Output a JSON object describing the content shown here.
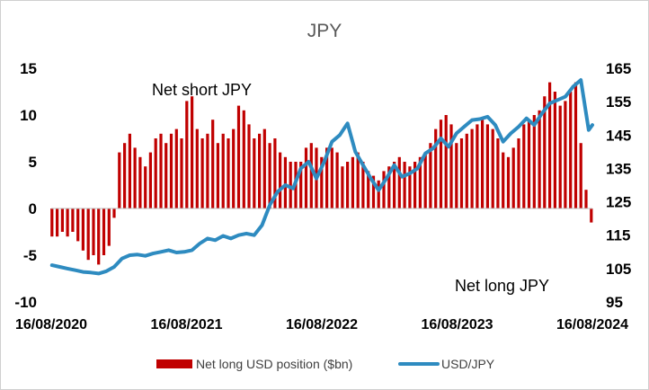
{
  "chart_data": {
    "type": "bar",
    "title": "JPY",
    "xlabel": "",
    "ylabel": "",
    "x_ticks": [
      "16/08/2020",
      "16/08/2021",
      "16/08/2022",
      "16/08/2023",
      "16/08/2024"
    ],
    "y_left": {
      "lim": [
        -10,
        15
      ],
      "ticks": [
        "15",
        "10",
        "5",
        "0",
        "-5",
        "-10"
      ]
    },
    "y_right": {
      "lim": [
        95,
        165
      ],
      "ticks": [
        "165",
        "155",
        "145",
        "135",
        "125",
        "115",
        "105",
        "95"
      ]
    },
    "grid": false,
    "legend_position": "bottom",
    "annotations": [
      "Net short JPY",
      "Net long JPY"
    ],
    "series": [
      {
        "name": "Net long USD position ($bn)",
        "type": "bar",
        "axis": "left",
        "color": "#c00000",
        "x": [
          "2020-08-18",
          "2020-09-01",
          "2020-09-15",
          "2020-09-29",
          "2020-10-13",
          "2020-10-27",
          "2020-11-10",
          "2020-11-24",
          "2020-12-08",
          "2020-12-22",
          "2021-01-05",
          "2021-01-19",
          "2021-02-02",
          "2021-02-16",
          "2021-03-02",
          "2021-03-16",
          "2021-03-30",
          "2021-04-13",
          "2021-04-27",
          "2021-05-11",
          "2021-05-25",
          "2021-06-08",
          "2021-06-22",
          "2021-07-06",
          "2021-07-20",
          "2021-08-03",
          "2021-08-17",
          "2021-08-31",
          "2021-09-14",
          "2021-09-28",
          "2021-10-12",
          "2021-10-26",
          "2021-11-09",
          "2021-11-23",
          "2021-12-07",
          "2021-12-21",
          "2022-01-04",
          "2022-01-18",
          "2022-02-01",
          "2022-02-15",
          "2022-03-01",
          "2022-03-15",
          "2022-03-29",
          "2022-04-12",
          "2022-04-26",
          "2022-05-10",
          "2022-05-24",
          "2022-06-07",
          "2022-06-21",
          "2022-07-05",
          "2022-07-19",
          "2022-08-02",
          "2022-08-16",
          "2022-08-30",
          "2022-09-13",
          "2022-09-27",
          "2022-10-11",
          "2022-10-25",
          "2022-11-08",
          "2022-11-22",
          "2022-12-06",
          "2022-12-20",
          "2023-01-03",
          "2023-01-17",
          "2023-01-31",
          "2023-02-14",
          "2023-02-28",
          "2023-03-14",
          "2023-03-28",
          "2023-04-11",
          "2023-04-25",
          "2023-05-09",
          "2023-05-23",
          "2023-06-06",
          "2023-06-20",
          "2023-07-04",
          "2023-07-18",
          "2023-08-01",
          "2023-08-15",
          "2023-08-29",
          "2023-09-12",
          "2023-09-26",
          "2023-10-10",
          "2023-10-24",
          "2023-11-07",
          "2023-11-21",
          "2023-12-05",
          "2023-12-19",
          "2024-01-02",
          "2024-01-16",
          "2024-01-30",
          "2024-02-13",
          "2024-02-27",
          "2024-03-12",
          "2024-03-26",
          "2024-04-09",
          "2024-04-23",
          "2024-05-07",
          "2024-05-21",
          "2024-06-04",
          "2024-06-18",
          "2024-07-02",
          "2024-07-16",
          "2024-07-30",
          "2024-08-13"
        ],
        "values": [
          -3.0,
          -3.0,
          -2.5,
          -3.0,
          -2.5,
          -3.5,
          -4.5,
          -5.5,
          -5.0,
          -6.0,
          -5.0,
          -4.0,
          -1.0,
          6.0,
          7.0,
          8.0,
          6.5,
          5.5,
          4.5,
          6.0,
          7.5,
          8.0,
          7.0,
          8.0,
          8.5,
          7.5,
          11.5,
          12.0,
          8.5,
          7.5,
          8.0,
          9.5,
          7.0,
          8.0,
          7.5,
          8.5,
          11.0,
          10.5,
          9.0,
          7.5,
          8.0,
          8.5,
          7.0,
          7.5,
          6.0,
          5.5,
          5.0,
          5.0,
          5.0,
          6.5,
          7.0,
          6.5,
          5.5,
          6.5,
          6.5,
          6.0,
          4.5,
          5.0,
          5.5,
          6.0,
          5.0,
          4.0,
          3.5,
          3.0,
          4.0,
          4.5,
          5.0,
          5.5,
          5.0,
          4.5,
          5.0,
          5.5,
          6.0,
          7.0,
          8.5,
          9.5,
          10.0,
          9.0,
          7.0,
          7.5,
          8.0,
          8.5,
          9.0,
          9.5,
          9.0,
          8.5,
          7.5,
          6.0,
          5.5,
          6.5,
          7.5,
          9.0,
          9.5,
          10.0,
          10.5,
          12.0,
          13.5,
          12.5,
          11.0,
          11.5,
          12.5,
          13.5,
          7.0,
          2.0,
          -1.5
        ]
      },
      {
        "name": "USD/JPY",
        "type": "line",
        "axis": "right",
        "color": "#2e8bc0",
        "x": [
          "2020-08-18",
          "2020-09-08",
          "2020-09-29",
          "2020-10-20",
          "2020-11-10",
          "2020-12-01",
          "2020-12-22",
          "2021-01-12",
          "2021-02-02",
          "2021-02-23",
          "2021-03-16",
          "2021-04-06",
          "2021-04-27",
          "2021-05-18",
          "2021-06-08",
          "2021-06-29",
          "2021-07-20",
          "2021-08-10",
          "2021-08-31",
          "2021-09-21",
          "2021-10-12",
          "2021-11-02",
          "2021-11-23",
          "2021-12-14",
          "2022-01-04",
          "2022-01-25",
          "2022-02-15",
          "2022-03-08",
          "2022-03-29",
          "2022-04-19",
          "2022-05-10",
          "2022-05-31",
          "2022-06-21",
          "2022-07-12",
          "2022-08-02",
          "2022-08-23",
          "2022-09-13",
          "2022-10-04",
          "2022-10-25",
          "2022-11-15",
          "2022-12-06",
          "2022-12-27",
          "2023-01-17",
          "2023-02-07",
          "2023-02-28",
          "2023-03-21",
          "2023-04-11",
          "2023-05-02",
          "2023-05-23",
          "2023-06-13",
          "2023-07-04",
          "2023-07-25",
          "2023-08-15",
          "2023-09-05",
          "2023-09-26",
          "2023-10-17",
          "2023-11-07",
          "2023-11-28",
          "2023-12-19",
          "2024-01-09",
          "2024-01-30",
          "2024-02-20",
          "2024-03-12",
          "2024-04-02",
          "2024-04-23",
          "2024-05-14",
          "2024-06-04",
          "2024-06-25",
          "2024-07-16",
          "2024-08-06",
          "2024-08-16"
        ],
        "values": [
          106.0,
          105.5,
          105.0,
          104.5,
          104.0,
          103.8,
          103.5,
          104.2,
          105.5,
          108.0,
          109.0,
          109.2,
          108.8,
          109.5,
          110.0,
          110.5,
          109.8,
          110.0,
          110.5,
          112.5,
          114.0,
          113.5,
          114.8,
          114.0,
          115.0,
          115.5,
          115.0,
          118.0,
          124.0,
          128.0,
          130.0,
          129.0,
          135.0,
          137.0,
          132.0,
          137.0,
          143.0,
          145.0,
          148.5,
          140.0,
          136.0,
          132.0,
          128.5,
          132.0,
          136.0,
          132.5,
          133.5,
          135.0,
          139.5,
          141.0,
          144.0,
          141.5,
          145.5,
          147.5,
          149.5,
          149.8,
          150.5,
          148.0,
          143.0,
          145.5,
          147.5,
          150.0,
          148.0,
          151.5,
          154.5,
          155.5,
          156.5,
          159.5,
          161.5,
          146.5,
          148.0
        ]
      }
    ]
  }
}
